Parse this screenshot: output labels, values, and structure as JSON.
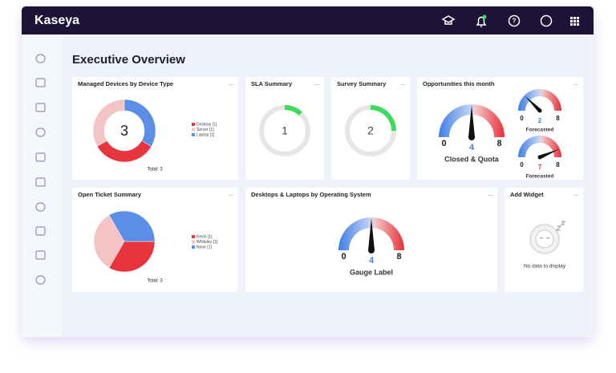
{
  "header": {
    "brand": "Kaseya"
  },
  "page": {
    "title": "Executive Overview",
    "menu": "..."
  },
  "widgets": [
    {
      "type": "donut",
      "title": "Managed Devices by Device Type",
      "center": 3,
      "total": "Total: 3",
      "series": [
        {
          "name": "Desktop [1]",
          "color": "#e8343c",
          "value": 1
        },
        {
          "name": "Server [1]",
          "color": "#f4c4c4",
          "value": 1
        },
        {
          "name": "Laptop [1]",
          "color": "#5b8ee6",
          "value": 1
        }
      ]
    },
    {
      "type": "ring",
      "title": "SLA Summary",
      "value": 1,
      "arc_percent": 12,
      "color": "#3fdc5c"
    },
    {
      "type": "ring",
      "title": "Survey Summary",
      "value": 2,
      "arc_percent": 25,
      "color": "#3fdc5c"
    },
    {
      "type": "gauges",
      "title": "Opportunities this month",
      "gauges": [
        {
          "min": 0,
          "max": 8,
          "value": 4,
          "label": "Closed & Quota"
        },
        {
          "min": 0,
          "max": 8,
          "value": 2,
          "label": "Forecasted"
        },
        {
          "min": 0,
          "max": 8,
          "value": 7,
          "label": "Forecasted"
        }
      ]
    },
    {
      "type": "pie",
      "title": "Open Ticket Summary",
      "total": "Total: 3",
      "series": [
        {
          "name": "Kevin [1]",
          "color": "#e8343c",
          "value": 1
        },
        {
          "name": "Whiteley [1]",
          "color": "#f4c4c4",
          "value": 1
        },
        {
          "name": "None [1]",
          "color": "#5b8ee6",
          "value": 1
        }
      ]
    },
    {
      "type": "gauges",
      "title": "Desktops & Laptops by Operating System",
      "gauges": [
        {
          "min": 0,
          "max": 8,
          "value": 4,
          "label": "Gauge Label"
        }
      ]
    },
    {
      "type": "empty",
      "title": "Add Widget",
      "message": "No data to display"
    }
  ]
}
